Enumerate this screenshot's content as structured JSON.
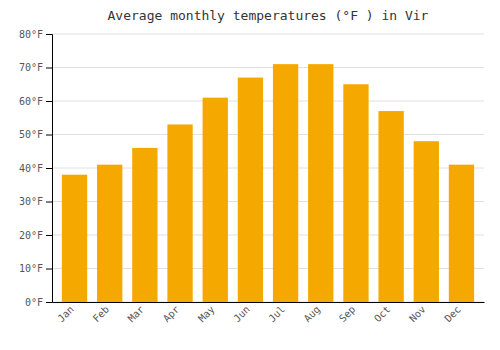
{
  "chart_data": {
    "type": "bar",
    "title": "Average monthly temperatures (°F ) in Vir",
    "categories": [
      "Jan",
      "Feb",
      "Mar",
      "Apr",
      "May",
      "Jun",
      "Jul",
      "Aug",
      "Sep",
      "Oct",
      "Nov",
      "Dec"
    ],
    "values": [
      38,
      41,
      46,
      53,
      61,
      67,
      71,
      71,
      65,
      57,
      48,
      41
    ],
    "color": "#F5A800",
    "ylim": [
      0,
      80
    ],
    "yticks": [
      {
        "value": 0,
        "label": "0°F"
      },
      {
        "value": 10,
        "label": "10°F"
      },
      {
        "value": 20,
        "label": "20°F"
      },
      {
        "value": 30,
        "label": "30°F"
      },
      {
        "value": 40,
        "label": "40°F"
      },
      {
        "value": 50,
        "label": "50°F"
      },
      {
        "value": 60,
        "label": "60°F"
      },
      {
        "value": 70,
        "label": "70°F"
      },
      {
        "value": 80,
        "label": "80°F"
      }
    ],
    "grid": true
  }
}
